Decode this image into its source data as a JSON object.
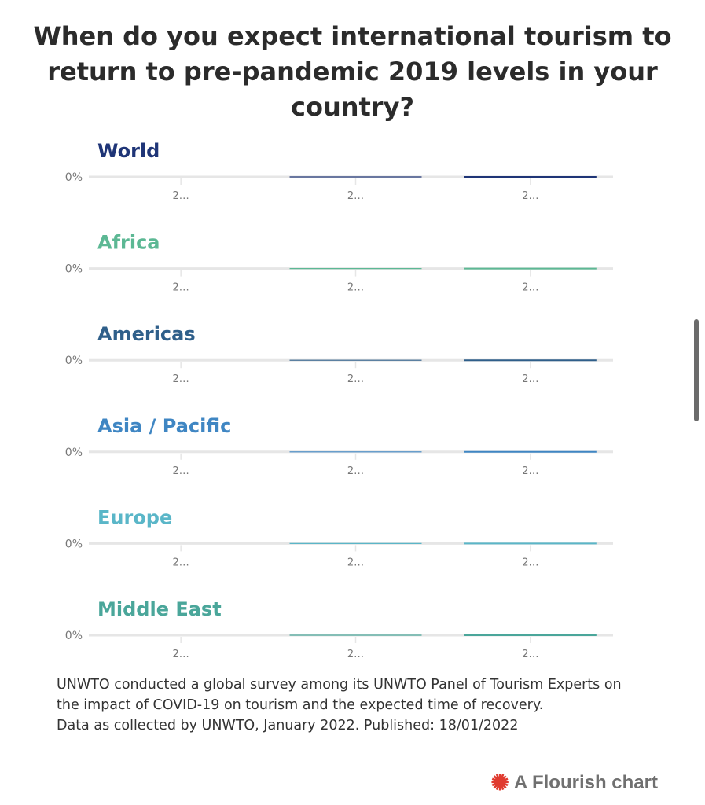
{
  "title": "When do you expect international tourism to return to pre-pandemic 2019 levels in your country?",
  "chart_data": {
    "type": "line",
    "layout": "small-multiples",
    "y_tick_label": "0%",
    "x_tick_labels": [
      "2…",
      "2…",
      "2…"
    ],
    "panels": [
      {
        "name": "World",
        "color": "#1f3577",
        "values": [
          0,
          0,
          0
        ]
      },
      {
        "name": "Africa",
        "color": "#5cb894",
        "values": [
          0,
          0,
          0
        ]
      },
      {
        "name": "Americas",
        "color": "#2f5f8a",
        "values": [
          0,
          0,
          0
        ]
      },
      {
        "name": "Asia / Pacific",
        "color": "#3f86c3",
        "values": [
          0,
          0,
          0
        ]
      },
      {
        "name": "Europe",
        "color": "#5ab6c8",
        "values": [
          0,
          0,
          0
        ]
      },
      {
        "name": "Middle East",
        "color": "#4aa69a",
        "values": [
          0,
          0,
          0
        ]
      }
    ]
  },
  "footer": {
    "line1": "UNWTO conducted a global survey among its UNWTO Panel of Tourism Experts on",
    "line2": "the impact of COVID-19 on tourism and the expected time of recovery.",
    "line3": "Data as collected by UNWTO, January 2022. Published: 18/01/2022"
  },
  "credit": {
    "logo_icon": "flourish-logo-icon",
    "text": "A Flourish chart",
    "color": "#e03a2f"
  }
}
